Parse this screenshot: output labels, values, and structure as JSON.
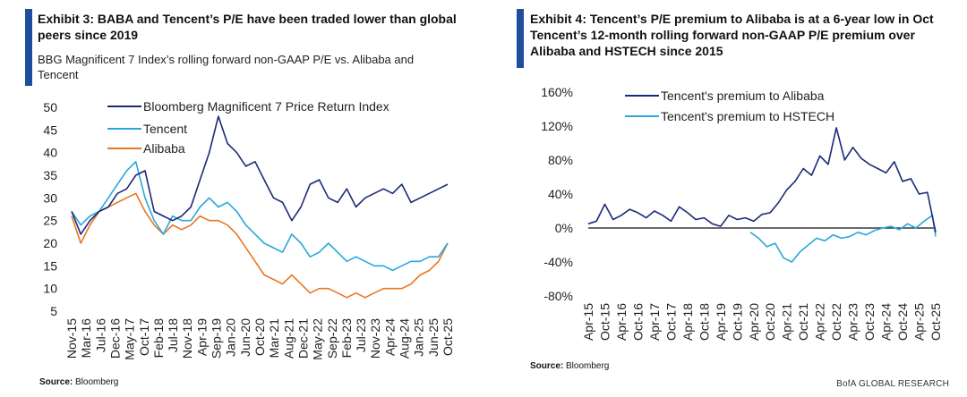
{
  "colors": {
    "accent": "#1f4e9c",
    "dark_navy": "#1b2a78",
    "light_blue": "#2aa8dc",
    "orange": "#e87722",
    "zero_line": "#111111"
  },
  "left": {
    "title": "Exhibit 3: BABA and Tencent’s P/E have been traded lower than global peers since 2019",
    "subtitle": "BBG Magnificent 7 Index’s rolling forward non-GAAP P/E vs. Alibaba and Tencent",
    "source_label": "Source:",
    "source_text": " Bloomberg"
  },
  "right": {
    "title": "Exhibit 4: Tencent’s P/E premium to Alibaba is at a 6-year low in Oct Tencent’s 12-month rolling forward non-GAAP P/E premium over Alibaba and HSTECH since 2015",
    "source_label": "Source:",
    "source_text": " Bloomberg",
    "brand": "BofA GLOBAL RESEARCH"
  },
  "chart_data": [
    {
      "type": "line",
      "ylim": [
        5,
        50
      ],
      "yticks": [
        "5",
        "10",
        "15",
        "20",
        "25",
        "30",
        "35",
        "40",
        "45",
        "50"
      ],
      "xlabels": [
        "Nov-15",
        "Mar-16",
        "Jul-16",
        "Dec-16",
        "May-17",
        "Oct-17",
        "Feb-18",
        "Jul-18",
        "Nov-18",
        "Apr-19",
        "Sep-19",
        "Jan-20",
        "Jun-20",
        "Oct-20",
        "Mar-21",
        "Aug-21",
        "Dec-21",
        "May-22",
        "Sep-22",
        "Feb-23",
        "Jul-23",
        "Nov-23",
        "Apr-24",
        "Aug-24",
        "Jan-25",
        "Jun-25",
        "Oct-25"
      ],
      "legend_position": "top-center",
      "series": [
        {
          "name": "Bloomberg Magnificent 7 Price Return Index",
          "color": "#1b2a78",
          "values": [
            27,
            22,
            25,
            27,
            28,
            31,
            32,
            35,
            36,
            27,
            26,
            25,
            26,
            28,
            34,
            40,
            48,
            42,
            40,
            37,
            38,
            34,
            30,
            29,
            25,
            28,
            33,
            34,
            30,
            29,
            32,
            28,
            30,
            31,
            32,
            31,
            33,
            29,
            30,
            31,
            32,
            33
          ]
        },
        {
          "name": "Tencent",
          "color": "#2aa8dc",
          "values": [
            27,
            24,
            26,
            27,
            30,
            33,
            36,
            38,
            30,
            25,
            22,
            26,
            25,
            25,
            28,
            30,
            28,
            29,
            27,
            24,
            22,
            20,
            19,
            18,
            22,
            20,
            17,
            18,
            20,
            18,
            16,
            17,
            16,
            15,
            15,
            14,
            15,
            16,
            16,
            17,
            17,
            20
          ]
        },
        {
          "name": "Alibaba",
          "color": "#e87722",
          "values": [
            26,
            20,
            24,
            27,
            28,
            29,
            30,
            31,
            27,
            24,
            22,
            24,
            23,
            24,
            26,
            25,
            25,
            24,
            22,
            19,
            16,
            13,
            12,
            11,
            13,
            11,
            9,
            10,
            10,
            9,
            8,
            9,
            8,
            9,
            10,
            10,
            10,
            11,
            13,
            14,
            16,
            20
          ]
        }
      ]
    },
    {
      "type": "line",
      "ylim": [
        -80,
        160
      ],
      "yticks": [
        "-80%",
        "-40%",
        "0%",
        "40%",
        "80%",
        "120%",
        "160%"
      ],
      "xlabels": [
        "Apr-15",
        "Oct-15",
        "Apr-16",
        "Oct-16",
        "Apr-17",
        "Oct-17",
        "Apr-18",
        "Oct-18",
        "Apr-19",
        "Oct-19",
        "Apr-20",
        "Oct-20",
        "Apr-21",
        "Oct-21",
        "Apr-22",
        "Oct-22",
        "Apr-23",
        "Oct-23",
        "Apr-24",
        "Oct-24",
        "Apr-25",
        "Oct-25"
      ],
      "legend_position": "top-left",
      "series": [
        {
          "name": "Tencent's premium to Alibaba",
          "color": "#1b2a78",
          "x": [
            0.0,
            0.5,
            1.0,
            1.5,
            2.0,
            2.5,
            3.0,
            3.5,
            4.0,
            4.5,
            5.0,
            5.5,
            6.0,
            6.5,
            7.0,
            7.5,
            8.0,
            8.5,
            9.0,
            9.5,
            10.0,
            10.5,
            11.0,
            11.5,
            12.0,
            12.5,
            13.0,
            13.5,
            14.0,
            14.5,
            15.0,
            15.5,
            16.0,
            16.5,
            17.0,
            17.5,
            18.0,
            18.5,
            19.0,
            19.5,
            20.0,
            20.5,
            21.0
          ],
          "values": [
            5,
            8,
            28,
            10,
            15,
            22,
            18,
            12,
            20,
            15,
            8,
            25,
            18,
            10,
            12,
            5,
            2,
            15,
            10,
            12,
            8,
            16,
            18,
            30,
            45,
            55,
            70,
            62,
            85,
            75,
            118,
            80,
            95,
            82,
            75,
            70,
            65,
            78,
            55,
            58,
            40,
            42,
            -5
          ]
        },
        {
          "name": "Tencent's premium to HSTECH",
          "color": "#2aa8dc",
          "x": [
            9.8,
            10.3,
            10.8,
            11.3,
            11.8,
            12.3,
            12.8,
            13.3,
            13.8,
            14.3,
            14.8,
            15.3,
            15.8,
            16.3,
            16.8,
            17.3,
            17.8,
            18.3,
            18.8,
            19.3,
            19.8,
            20.3,
            20.8,
            21.0
          ],
          "values": [
            -5,
            -12,
            -22,
            -18,
            -35,
            -40,
            -28,
            -20,
            -12,
            -15,
            -8,
            -12,
            -10,
            -5,
            -8,
            -3,
            0,
            2,
            -2,
            5,
            0,
            8,
            15,
            -10
          ]
        }
      ]
    }
  ]
}
